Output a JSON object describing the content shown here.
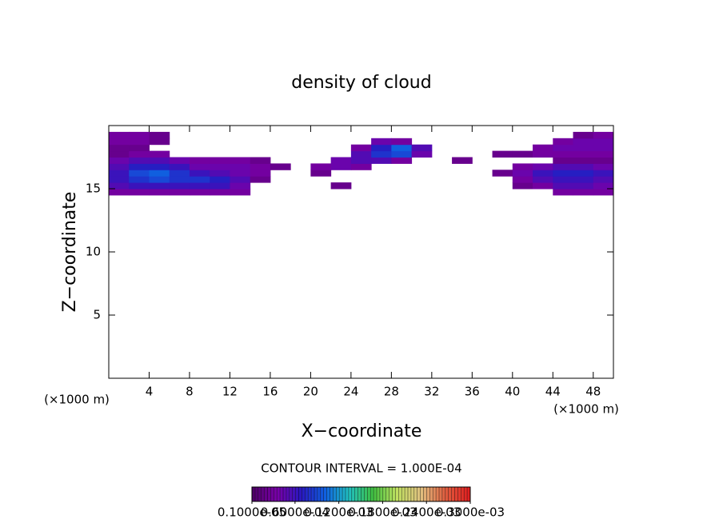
{
  "chart_data": {
    "type": "contour",
    "title": "density of cloud",
    "x_label": "X−coordinate",
    "y_label": "Z−coordinate",
    "annotations": [
      "(×1000 m)",
      "(×1000 m)"
    ],
    "subtitle": "CONTOUR INTERVAL = 1.000E-04",
    "xlim": [
      0,
      50
    ],
    "ylim": [
      0,
      20
    ],
    "xticks": [
      4,
      8,
      12,
      16,
      20,
      24,
      28,
      32,
      36,
      40,
      44,
      48
    ],
    "yticks": [
      5,
      10,
      15
    ],
    "xedges": [
      0,
      2,
      4,
      6,
      8,
      10,
      12,
      14,
      16,
      18,
      20,
      22,
      24,
      26,
      28,
      30,
      32,
      34,
      36,
      38,
      40,
      42,
      44,
      46,
      48,
      50
    ],
    "zedges": [
      14.5,
      15,
      15.5,
      16,
      16.5,
      17,
      17.5,
      18,
      18.5,
      19,
      19.5
    ],
    "values": [
      [
        3e-05,
        3e-05,
        3e-05,
        3e-05,
        3e-05,
        3e-05,
        3e-05,
        null,
        null,
        null,
        null,
        null,
        null,
        null,
        null,
        null,
        null,
        null,
        null,
        null,
        null,
        null,
        3e-05,
        3e-05,
        3e-05
      ],
      [
        5e-05,
        6e-05,
        6e-05,
        6e-05,
        6e-05,
        6e-05,
        4e-05,
        null,
        null,
        null,
        null,
        2e-05,
        null,
        null,
        null,
        null,
        null,
        null,
        null,
        null,
        2e-05,
        3e-05,
        5e-05,
        5e-05,
        4e-05
      ],
      [
        6e-05,
        8e-05,
        9e-05,
        8e-05,
        8e-05,
        7e-05,
        5e-05,
        2e-05,
        null,
        null,
        null,
        null,
        null,
        null,
        null,
        null,
        null,
        null,
        null,
        null,
        3e-05,
        5e-05,
        6e-05,
        6e-05,
        5e-05
      ],
      [
        6e-05,
        9e-05,
        0.0001,
        8e-05,
        6e-05,
        5e-05,
        4e-05,
        3e-05,
        null,
        null,
        2e-05,
        null,
        null,
        null,
        null,
        null,
        null,
        null,
        null,
        2e-05,
        4e-05,
        6e-05,
        7e-05,
        7e-05,
        6e-05
      ],
      [
        5e-05,
        7e-05,
        7e-05,
        6e-05,
        4e-05,
        4e-05,
        4e-05,
        3e-05,
        2e-05,
        null,
        3e-05,
        4e-05,
        3e-05,
        null,
        null,
        null,
        null,
        null,
        null,
        null,
        3e-05,
        4e-05,
        5e-05,
        5e-05,
        4e-05
      ],
      [
        4e-05,
        5e-05,
        5e-05,
        4e-05,
        3e-05,
        3e-05,
        3e-05,
        2e-05,
        null,
        null,
        null,
        4e-05,
        5e-05,
        5e-05,
        3e-05,
        null,
        null,
        2e-05,
        null,
        null,
        null,
        null,
        2e-05,
        2e-05,
        2e-05
      ],
      [
        2e-05,
        3e-05,
        3e-05,
        null,
        null,
        null,
        null,
        null,
        null,
        null,
        null,
        null,
        5e-05,
        8e-05,
        9e-05,
        4e-05,
        null,
        null,
        null,
        2e-05,
        2e-05,
        3e-05,
        3e-05,
        3e-05,
        3e-05
      ],
      [
        2e-05,
        2e-05,
        null,
        null,
        null,
        null,
        null,
        null,
        null,
        null,
        null,
        null,
        3e-05,
        7e-05,
        0.0001,
        5e-05,
        null,
        null,
        null,
        null,
        null,
        3e-05,
        4e-05,
        4e-05,
        4e-05
      ],
      [
        3e-05,
        3e-05,
        2e-05,
        null,
        null,
        null,
        null,
        null,
        null,
        null,
        null,
        null,
        null,
        4e-05,
        3e-05,
        null,
        null,
        null,
        null,
        null,
        null,
        null,
        3e-05,
        4e-05,
        4e-05
      ],
      [
        3e-05,
        3e-05,
        2e-05,
        null,
        null,
        null,
        null,
        null,
        null,
        null,
        null,
        null,
        null,
        null,
        null,
        null,
        null,
        null,
        null,
        null,
        null,
        null,
        null,
        2e-05,
        3e-05
      ]
    ],
    "clim": [
      1e-06,
      0.0003
    ],
    "colorscale": [
      "#50006a",
      "#7800a8",
      "#2818c0",
      "#1060e0",
      "#20c0c0",
      "#40c040",
      "#c0e060",
      "#e0c080",
      "#e06040",
      "#e02020"
    ],
    "colorbar_ticks": [
      {
        "value": 1e-06,
        "label": "0.1000e-05"
      },
      {
        "value": 6e-05,
        "label": "0.6000e-04"
      },
      {
        "value": 0.00012,
        "label": "0.1200e-03"
      },
      {
        "value": 0.00018,
        "label": "0.1800e-03"
      },
      {
        "value": 0.00024,
        "label": "0.2400e-03"
      },
      {
        "value": 0.0003,
        "label": "0.3000e-03"
      }
    ]
  }
}
